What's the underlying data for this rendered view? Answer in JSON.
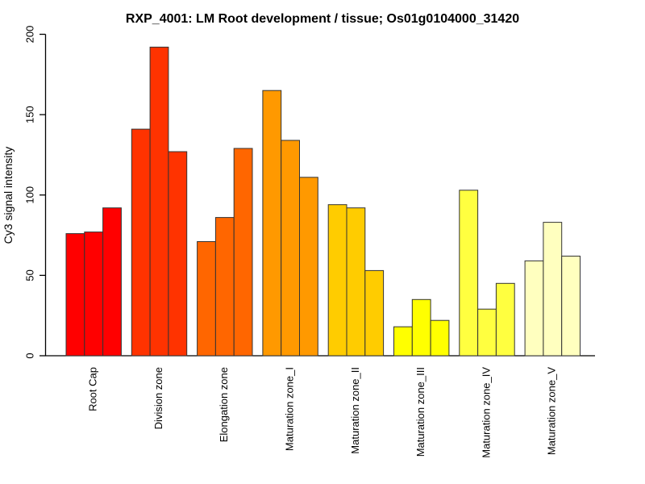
{
  "chart_data": {
    "type": "bar",
    "title": "RXP_4001: LM Root development / tissue; Os01g0104000_31420",
    "xlabel": "",
    "ylabel": "Cy3 signal intensity",
    "ylim": [
      0,
      200
    ],
    "yticks": [
      0,
      50,
      100,
      150,
      200
    ],
    "grid": false,
    "legend": "none",
    "bars_per_group": 3,
    "categories": [
      "Root Cap",
      "Division zone",
      "Elongation zone",
      "Maturation zone_I",
      "Maturation zone_II",
      "Maturation zone_III",
      "Maturation zone_IV",
      "Maturation zone_V"
    ],
    "groups": [
      {
        "category": "Root Cap",
        "color": "#FF0000",
        "values": [
          76,
          77,
          92
        ]
      },
      {
        "category": "Division zone",
        "color": "#FF3300",
        "values": [
          141,
          192,
          127
        ]
      },
      {
        "category": "Elongation zone",
        "color": "#FF6600",
        "values": [
          71,
          86,
          129
        ]
      },
      {
        "category": "Maturation zone_I",
        "color": "#FF9900",
        "values": [
          165,
          134,
          111
        ]
      },
      {
        "category": "Maturation zone_II",
        "color": "#FFCC00",
        "values": [
          94,
          92,
          53
        ]
      },
      {
        "category": "Maturation zone_III",
        "color": "#FFFF00",
        "values": [
          18,
          35,
          22
        ]
      },
      {
        "category": "Maturation zone_IV",
        "color": "#FFFF40",
        "values": [
          103,
          29,
          45
        ]
      },
      {
        "category": "Maturation zone_V",
        "color": "#FFFFBF",
        "values": [
          59,
          83,
          62
        ]
      }
    ],
    "colors": {
      "axis": "#000000",
      "bar_border": "#333333",
      "text": "#000000",
      "background": "#FFFFFF"
    }
  }
}
